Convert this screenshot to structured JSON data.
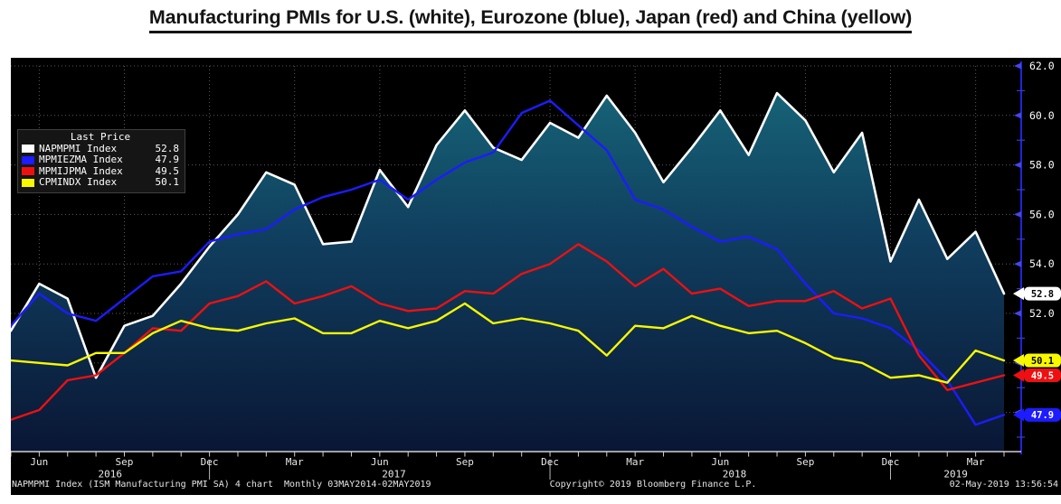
{
  "header": {
    "title": "Manufacturing PMIs for U.S. (white), Eurozone (blue), Japan (red) and China (yellow)"
  },
  "legend": {
    "header": "Last Price"
  },
  "footer": {
    "left": "NAPMPMI Index (ISM Manufacturing PMI SA) 4 chart  Monthly 03MAY2014-02MAY2019",
    "center": "Copyright© 2019 Bloomberg Finance L.P.",
    "right": "02-May-2019 13:56:54"
  },
  "chart_data": {
    "type": "line",
    "title": "Manufacturing PMIs for U.S. (white), Eurozone (blue), Japan (red) and China (yellow)",
    "x_unit": "month",
    "x_start": "2016-05",
    "x_end": "2019-04",
    "n_points": 36,
    "ylim": [
      46.4,
      62.3
    ],
    "grid": "dotted, horizontal every 2.0 units, vertical quarterly",
    "legend_position": "upper-left",
    "yticks_labeled": [
      "52.0",
      "54.0",
      "56.0",
      "58.0",
      "60.0",
      "62.0"
    ],
    "x_tick_labels": [
      {
        "label": "Jun",
        "month": 1
      },
      {
        "label": "Sep",
        "month": 4
      },
      {
        "label": "Dec",
        "month": 7
      },
      {
        "label": "Mar",
        "month": 10
      },
      {
        "label": "Jun",
        "month": 13
      },
      {
        "label": "Sep",
        "month": 16
      },
      {
        "label": "Dec",
        "month": 19
      },
      {
        "label": "Mar",
        "month": 22
      },
      {
        "label": "Jun",
        "month": 25
      },
      {
        "label": "Sep",
        "month": 28
      },
      {
        "label": "Dec",
        "month": 31
      },
      {
        "label": "Mar",
        "month": 34
      }
    ],
    "x_year_labels": [
      {
        "label": "2016",
        "month": 3.5
      },
      {
        "label": "2017",
        "month": 13.5
      },
      {
        "label": "2018",
        "month": 25.5
      },
      {
        "label": "2019",
        "month": 33.3
      }
    ],
    "year_divider_months": [
      7,
      19,
      31
    ],
    "series": [
      {
        "name": "NAPMPMI Index",
        "region": "U.S.",
        "color": "#ffffff",
        "bubble_text_color": "#000000",
        "style": "area",
        "last_price": "52.8",
        "values": [
          51.3,
          53.2,
          52.6,
          49.4,
          51.5,
          51.9,
          53.2,
          54.7,
          56.0,
          57.7,
          57.2,
          54.8,
          54.9,
          57.8,
          56.3,
          58.8,
          60.2,
          58.7,
          58.2,
          59.7,
          59.1,
          60.8,
          59.3,
          57.3,
          58.7,
          60.2,
          58.4,
          60.9,
          59.8,
          57.7,
          59.3,
          54.1,
          56.6,
          54.2,
          55.3,
          52.8
        ]
      },
      {
        "name": "MPMIEZMA Index",
        "region": "Eurozone",
        "color": "#1c1cff",
        "bubble_text_color": "#ffffff",
        "style": "line",
        "last_price": "47.9",
        "values": [
          51.5,
          52.8,
          52.0,
          51.7,
          52.6,
          53.5,
          53.7,
          54.9,
          55.2,
          55.4,
          56.2,
          56.7,
          57.0,
          57.4,
          56.6,
          57.4,
          58.1,
          58.5,
          60.1,
          60.6,
          59.6,
          58.6,
          56.6,
          56.2,
          55.5,
          54.9,
          55.1,
          54.6,
          53.2,
          52.0,
          51.8,
          51.4,
          50.5,
          49.3,
          47.5,
          47.9
        ]
      },
      {
        "name": "MPMIJPMA Index",
        "region": "Japan",
        "color": "#ee1010",
        "bubble_text_color": "#ffffff",
        "style": "line",
        "last_price": "49.5",
        "values": [
          47.7,
          48.1,
          49.3,
          49.5,
          50.4,
          51.4,
          51.3,
          52.4,
          52.7,
          53.3,
          52.4,
          52.7,
          53.1,
          52.4,
          52.1,
          52.2,
          52.9,
          52.8,
          53.6,
          54.0,
          54.8,
          54.1,
          53.1,
          53.8,
          52.8,
          53.0,
          52.3,
          52.5,
          52.5,
          52.9,
          52.2,
          52.6,
          50.3,
          48.9,
          49.2,
          49.5
        ]
      },
      {
        "name": "CPMINDX Index",
        "region": "China",
        "color": "#f8f800",
        "bubble_text_color": "#000000",
        "style": "line",
        "last_price": "50.1",
        "values": [
          50.1,
          50.0,
          49.9,
          50.4,
          50.4,
          51.2,
          51.7,
          51.4,
          51.3,
          51.6,
          51.8,
          51.2,
          51.2,
          51.7,
          51.4,
          51.7,
          52.4,
          51.6,
          51.8,
          51.6,
          51.3,
          50.3,
          51.5,
          51.4,
          51.9,
          51.5,
          51.2,
          51.3,
          50.8,
          50.2,
          50.0,
          49.4,
          49.5,
          49.2,
          50.5,
          50.1
        ]
      }
    ],
    "colors": {
      "background": "#000000",
      "grid": "#5a5a5a",
      "y_axis_line": "#2222e0",
      "y_axis_minor_tick": "#3c3cc8",
      "x_axis_line": "#d0d0d0",
      "area_top": "#17697a",
      "area_mid": "#103e5e",
      "area_bottom": "#0a1635",
      "axis_label_text": "#ffffff"
    }
  }
}
